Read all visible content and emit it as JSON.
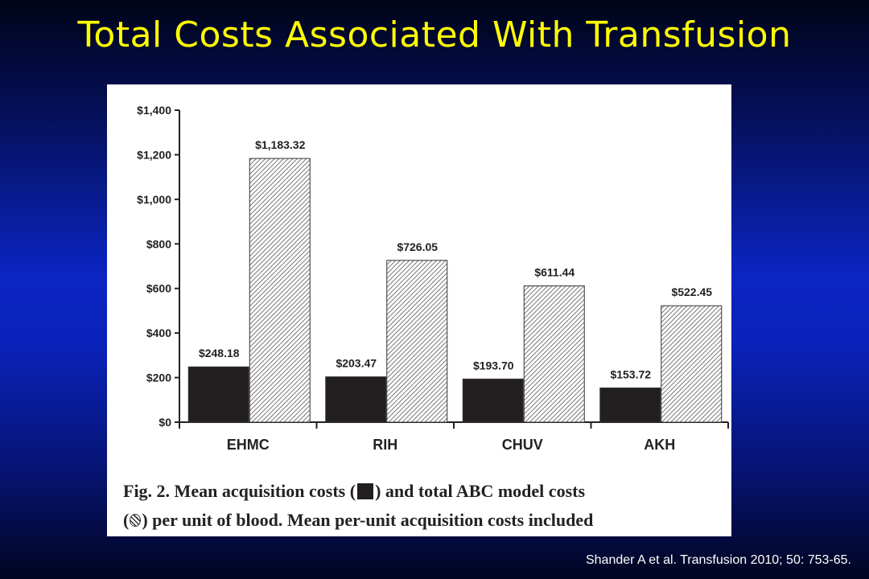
{
  "slide": {
    "title": "Total Costs Associated With Transfusion",
    "citation": "Shander A et al. Transfusion 2010; 50: 753-65."
  },
  "caption": {
    "part1": "Fig. 2. Mean acquisition costs (",
    "part2": ") and total ABC model costs",
    "part3_open": "(",
    "part3_close": ") per unit of blood. Mean per-unit acquisition costs included"
  },
  "colors": {
    "acquisition": "#231f20",
    "abc_hatch": "#555555"
  },
  "chart_data": {
    "type": "bar",
    "categories": [
      "EHMC",
      "RIH",
      "CHUV",
      "AKH"
    ],
    "series": [
      {
        "values": [
          248.18,
          203.47,
          193.7,
          153.72
        ],
        "labels": [
          "$248.18",
          "$203.47",
          "$193.70",
          "$153.72"
        ],
        "fill": "solid"
      },
      {
        "values": [
          1183.32,
          726.05,
          611.44,
          522.45
        ],
        "labels": [
          "$1,183.32",
          "$726.05",
          "$611.44",
          "$522.45"
        ],
        "fill": "hatched"
      }
    ],
    "ylim": [
      0,
      1400
    ],
    "yticks": [
      0,
      200,
      400,
      600,
      800,
      1000,
      1200,
      1400
    ],
    "yticklabels": [
      "$0",
      "$200",
      "$400",
      "$600",
      "$800",
      "$1,000",
      "$1,200",
      "$1,400"
    ],
    "grid": false
  }
}
